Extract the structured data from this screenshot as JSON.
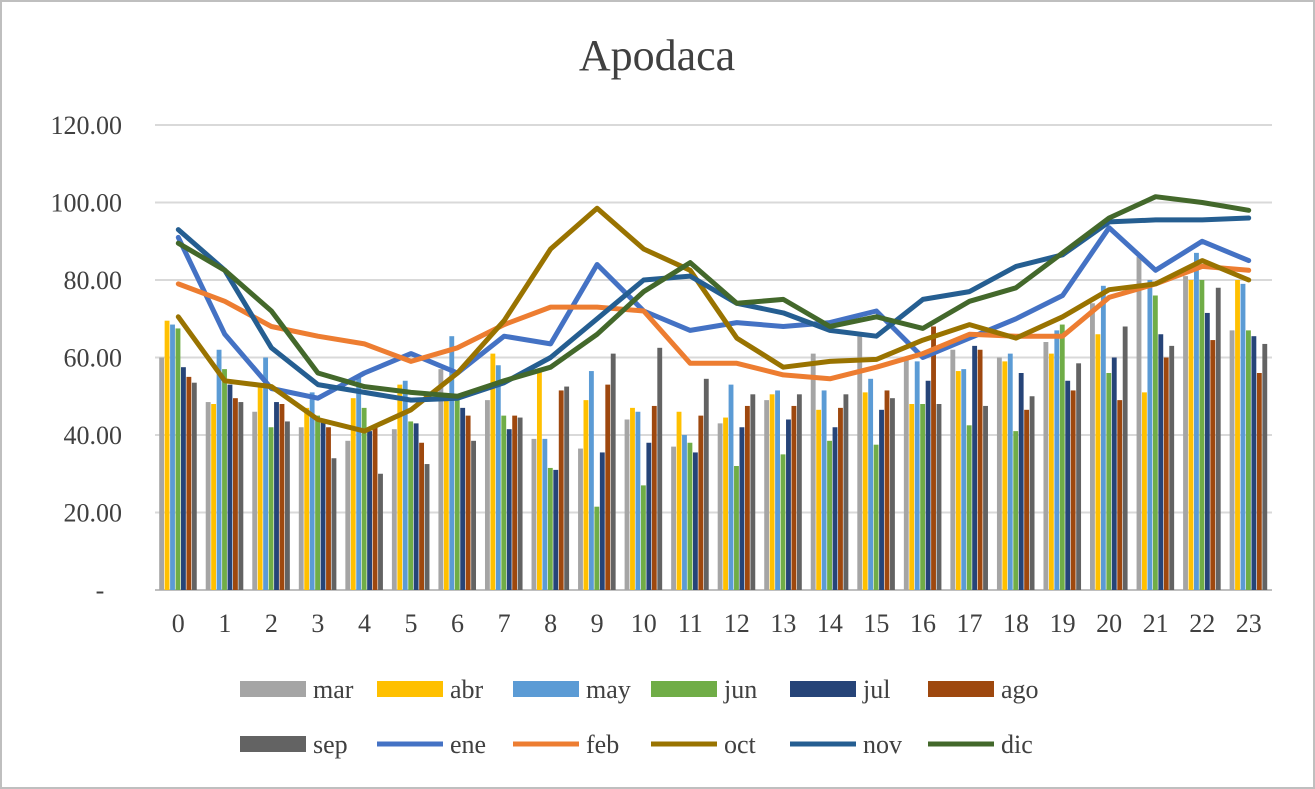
{
  "chart_data": {
    "type": "bar+line",
    "title": "Apodaca",
    "xlabel": "",
    "ylabel": "",
    "ylim": [
      0,
      120
    ],
    "ytick_labels": [
      "-",
      "20.00",
      "40.00",
      "60.00",
      "80.00",
      "100.00",
      "120.00"
    ],
    "ytick_values": [
      0,
      20,
      40,
      60,
      80,
      100,
      120
    ],
    "grid": true,
    "legend_position": "bottom",
    "categories": [
      "0",
      "1",
      "2",
      "3",
      "4",
      "5",
      "6",
      "7",
      "8",
      "9",
      "10",
      "11",
      "12",
      "13",
      "14",
      "15",
      "16",
      "17",
      "18",
      "19",
      "20",
      "21",
      "22",
      "23"
    ],
    "bar_series": [
      {
        "name": "mar",
        "color": "#a5a5a5",
        "values": [
          60,
          48.5,
          46,
          42,
          38.5,
          41.5,
          57,
          49,
          39,
          36.5,
          44,
          37,
          43,
          49,
          61,
          65.5,
          60,
          62,
          60,
          64,
          74,
          86,
          81,
          67
        ]
      },
      {
        "name": "abr",
        "color": "#ffc000",
        "values": [
          69.5,
          48,
          53,
          47,
          49.5,
          53,
          50.5,
          61,
          57,
          49,
          47,
          46,
          44.5,
          50.5,
          46.5,
          51,
          48,
          56.5,
          59,
          61,
          66,
          51,
          80,
          80
        ]
      },
      {
        "name": "may",
        "color": "#5b9bd5",
        "values": [
          68.5,
          62,
          60,
          51,
          55,
          54,
          65.5,
          58,
          39,
          56.5,
          46,
          40,
          53,
          51.5,
          51.5,
          54.5,
          59,
          57,
          61,
          67,
          78.5,
          80,
          87,
          79
        ]
      },
      {
        "name": "jun",
        "color": "#70ad47",
        "values": [
          67.5,
          57,
          42,
          45,
          47,
          43.5,
          50,
          45,
          31.5,
          21.5,
          27,
          38,
          32,
          35,
          38.5,
          37.5,
          48,
          42.5,
          41,
          68.5,
          56,
          76,
          80,
          67
        ]
      },
      {
        "name": "jul",
        "color": "#264478",
        "values": [
          57.5,
          53,
          48.5,
          44,
          41,
          43,
          47,
          41.5,
          31,
          35.5,
          38,
          35.5,
          42,
          44,
          42,
          46.5,
          54,
          63,
          56,
          54,
          60,
          66,
          71.5,
          65.5
        ]
      },
      {
        "name": "ago",
        "color": "#9e480e",
        "values": [
          55,
          49.5,
          48,
          42,
          42,
          38,
          45,
          45,
          51.5,
          53,
          47.5,
          45,
          47.5,
          47.5,
          47,
          51.5,
          68,
          62,
          46.5,
          51.5,
          49,
          60,
          64.5,
          56
        ]
      },
      {
        "name": "sep",
        "color": "#636363",
        "values": [
          53.5,
          48.5,
          43.5,
          34,
          30,
          32.5,
          38.5,
          44.5,
          52.5,
          61,
          62.5,
          54.5,
          50.5,
          50.5,
          50.5,
          49.5,
          48,
          47.5,
          50,
          58.5,
          68,
          63,
          78,
          63.5
        ]
      }
    ],
    "line_series": [
      {
        "name": "ene",
        "color": "#4472c4",
        "values": [
          91,
          66,
          52,
          49.5,
          56,
          61,
          56,
          65.5,
          63.5,
          84,
          72,
          67,
          69,
          68,
          69,
          72,
          60,
          65,
          70,
          76,
          93.5,
          82.5,
          90,
          85
        ]
      },
      {
        "name": "feb",
        "color": "#ed7d31",
        "values": [
          79,
          74.5,
          68,
          65.5,
          63.5,
          59,
          62.5,
          68.5,
          73,
          73,
          72,
          58.5,
          58.5,
          55.5,
          54.5,
          57.5,
          61,
          66,
          65.5,
          65.5,
          75.5,
          79,
          83.5,
          82.5
        ]
      },
      {
        "name": "oct",
        "color": "#997300",
        "values": [
          70.5,
          54,
          52.5,
          44,
          41,
          46.5,
          56,
          69.5,
          88,
          98.5,
          88,
          82.5,
          65,
          57.5,
          59,
          59.5,
          64.5,
          68.5,
          65,
          70.5,
          77.5,
          79,
          85,
          80
        ]
      },
      {
        "name": "nov",
        "color": "#255e91",
        "values": [
          93,
          82.5,
          62.5,
          53,
          51,
          49,
          49.5,
          53.5,
          60,
          70,
          80,
          81,
          74,
          71.5,
          67,
          65.5,
          75,
          77,
          83.5,
          86.5,
          95,
          95.5,
          95.5,
          96
        ]
      },
      {
        "name": "dic",
        "color": "#43682b",
        "values": [
          89.5,
          82.5,
          72,
          56,
          52.5,
          51,
          50,
          54,
          57.5,
          66,
          77,
          84.5,
          74,
          75,
          68,
          70.5,
          67.5,
          74.5,
          78,
          87,
          96,
          101.5,
          100,
          98
        ]
      }
    ],
    "legend": [
      {
        "name": "mar",
        "kind": "bar",
        "color": "#a5a5a5"
      },
      {
        "name": "abr",
        "kind": "bar",
        "color": "#ffc000"
      },
      {
        "name": "may",
        "kind": "bar",
        "color": "#5b9bd5"
      },
      {
        "name": "jun",
        "kind": "bar",
        "color": "#70ad47"
      },
      {
        "name": "jul",
        "kind": "bar",
        "color": "#264478"
      },
      {
        "name": "ago",
        "kind": "bar",
        "color": "#9e480e"
      },
      {
        "name": "sep",
        "kind": "bar",
        "color": "#636363"
      },
      {
        "name": "ene",
        "kind": "line",
        "color": "#4472c4"
      },
      {
        "name": "feb",
        "kind": "line",
        "color": "#ed7d31"
      },
      {
        "name": "oct",
        "kind": "line",
        "color": "#997300"
      },
      {
        "name": "nov",
        "kind": "line",
        "color": "#255e91"
      },
      {
        "name": "dic",
        "kind": "line",
        "color": "#43682b"
      }
    ]
  }
}
